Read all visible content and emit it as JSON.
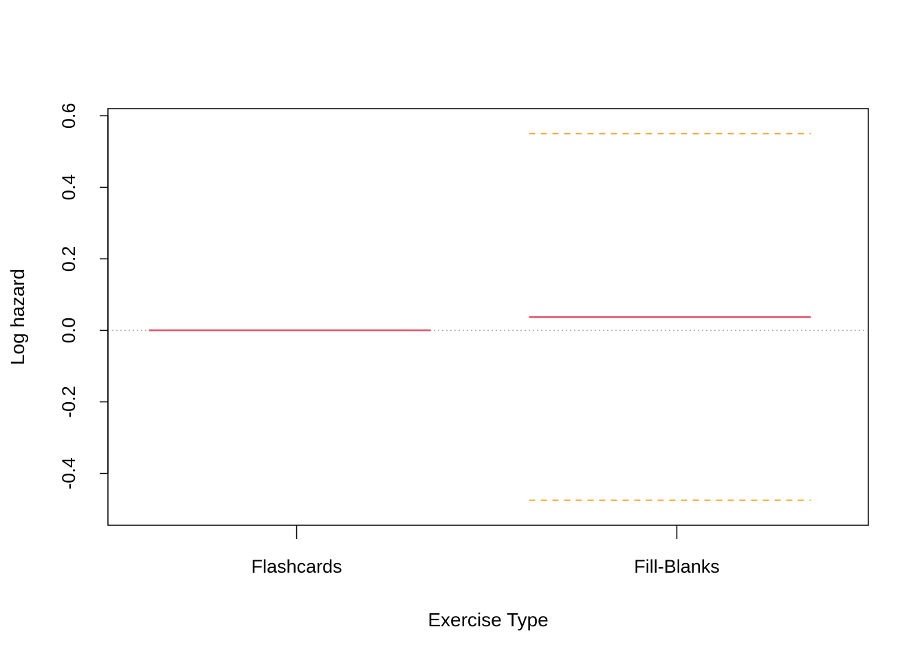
{
  "chart_data": {
    "type": "line",
    "xlabel": "Exercise Type",
    "ylabel": "Log hazard",
    "categories": [
      "Flashcards",
      "Fill-Blanks"
    ],
    "ylim": [
      -0.545,
      0.62
    ],
    "yticks": [
      -0.4,
      -0.2,
      0.0,
      0.2,
      0.4,
      0.6
    ],
    "ytick_labels": [
      "-0.4",
      "-0.2",
      "0.0",
      "0.2",
      "0.4",
      "0.6"
    ],
    "reference_line": {
      "y": 0.0,
      "style": "dotted",
      "color": "#aaaaaa"
    },
    "grid": false,
    "legend": "none",
    "series": [
      {
        "role": "estimate",
        "style": "solid",
        "color": "#df536b",
        "values": [
          0.0,
          0.037
        ]
      },
      {
        "role": "upper",
        "style": "dashed",
        "color": "#f5a623",
        "values": [
          0.0,
          0.55
        ]
      },
      {
        "role": "lower",
        "style": "dashed",
        "color": "#f5a623",
        "values": [
          0.0,
          -0.475
        ]
      }
    ]
  }
}
